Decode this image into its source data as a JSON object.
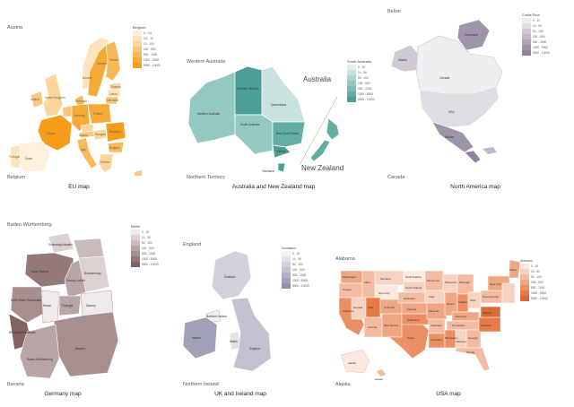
{
  "panels": {
    "eu": {
      "corner_top": "Austria",
      "corner_bottom": "Belgium",
      "caption": "EU map",
      "legend_title": "Belgium",
      "legend_items": [
        "0 - 0.5",
        "0.5 - 10",
        "10 - 100",
        "100 - 500",
        "500 - 1000",
        "1000 - 5000",
        "5000 - 10000"
      ],
      "legend_colors": [
        "#fdf1de",
        "#fce3bd",
        "#fbd59c",
        "#f9c77b",
        "#f8b95a",
        "#f6ab39",
        "#f59d18"
      ],
      "region_labels": [
        "Sweden",
        "Finland",
        "Norway",
        "Estonia",
        "Latvia",
        "Lithuania",
        "Denmark",
        "Poland",
        "Germany",
        "France",
        "Spain",
        "Italy",
        "Romania",
        "Bulgaria",
        "Ireland",
        "United Kingdom",
        "Portugal",
        "Greece",
        "Hungary",
        "Austria"
      ]
    },
    "aus": {
      "corner_top": "Western Australia",
      "corner_bottom": "Northern Territory",
      "caption": "Australia and New Zealand map",
      "legend_title": "South Australia",
      "legend_items": [
        "0 - 10",
        "10 - 50",
        "50 - 100",
        "100 - 500",
        "500 - 1000",
        "1000 - 5000",
        "5000 - 10000"
      ],
      "legend_colors": [
        "#e1efee",
        "#c8e2df",
        "#afd5d0",
        "#96c8c2",
        "#7dbab3",
        "#64ada5",
        "#4b9f96"
      ],
      "big_label_1": "Australia",
      "big_label_2": "New Zealand",
      "region_labels": [
        "Western Australia",
        "Northern Territory",
        "Queensland",
        "South Australia",
        "New South Wales",
        "Victoria",
        "Tasmania"
      ]
    },
    "na": {
      "corner_top": "Belize",
      "corner_bottom": "Canada",
      "caption": "North America map",
      "legend_title": "Costa Rica",
      "legend_items": [
        "0 - 10",
        "10 - 50",
        "50 - 100",
        "100 - 500",
        "500 - 1000",
        "1000 - 5000",
        "5000 - 10000"
      ],
      "legend_colors": [
        "#f0eef1",
        "#e0dce3",
        "#d0cad5",
        "#c0b8c7",
        "#b0a6b9",
        "#a094ab",
        "#90829d"
      ],
      "region_labels": [
        "Canada",
        "USA",
        "Mexico",
        "Alaska",
        "Greenland"
      ]
    },
    "de": {
      "corner_top": "Baden-Württemberg",
      "corner_bottom": "Bavaria",
      "caption": "Germany map",
      "legend_title": "Berlin",
      "legend_items": [
        "0 - 10",
        "10 - 50",
        "50 - 100",
        "100 - 500",
        "500 - 1000",
        "1000 - 5000",
        "5000 - 10000"
      ],
      "legend_colors": [
        "#efe9e9",
        "#ddd2d2",
        "#cbbcbc",
        "#b9a5a5",
        "#a78f8f",
        "#957878",
        "#836262"
      ],
      "region_labels": [
        "Schleswig-Holstein",
        "Lower Saxony",
        "Brandenburg",
        "Saxony-Anhalt",
        "North Rhine-Westphalia",
        "Hesse",
        "Thuringia",
        "Saxony",
        "Rhineland-Palatinate",
        "Bavaria",
        "Baden-Württemberg"
      ]
    },
    "uk": {
      "corner_top": "England",
      "corner_bottom": "Northern Ireland",
      "caption": "UK and Ireland map",
      "legend_title": "Scotland",
      "legend_items": [
        "0 - 10",
        "10 - 50",
        "50 - 100",
        "100 - 500",
        "500 - 1000",
        "1000 - 5000",
        "5000 - 10000"
      ],
      "legend_colors": [
        "#f1f1f4",
        "#e1e1e8",
        "#d1d1dc",
        "#c1c1d0",
        "#b1b1c4",
        "#a1a1b8",
        "#9191ac"
      ],
      "region_labels": [
        "Scotland",
        "Northern Ireland",
        "Ireland",
        "Wales",
        "England"
      ]
    },
    "usa": {
      "corner_top": "Alabama",
      "corner_bottom": "Alaska",
      "caption": "USA map",
      "legend_title": "Arizona",
      "legend_items": [
        "0 - 10",
        "10 - 50",
        "50 - 100",
        "100 - 500",
        "500 - 1000",
        "1000 - 5000",
        "5000 - 10000"
      ],
      "legend_colors": [
        "#fbe8e0",
        "#f7d2c1",
        "#f3bca2",
        "#efa683",
        "#eb9064",
        "#e77a45",
        "#d96a3a"
      ],
      "region_labels": [
        "Washington",
        "Oregon",
        "California",
        "Nevada",
        "Idaho",
        "Montana",
        "Wyoming",
        "Utah",
        "Colorado",
        "Arizona",
        "New Mexico",
        "Texas",
        "North Dakota",
        "South Dakota",
        "Nebraska",
        "Kansas",
        "Oklahoma",
        "Minnesota",
        "Iowa",
        "Missouri",
        "Arkansas",
        "Louisiana",
        "Wisconsin",
        "Illinois",
        "Michigan",
        "Indiana",
        "Ohio",
        "Kentucky",
        "Tennessee",
        "Mississippi",
        "Alabama",
        "Georgia",
        "Florida",
        "Carolina",
        "Virginia",
        "Pennsylvania",
        "New York",
        "Maine",
        "Alaska",
        "Hawaii"
      ]
    }
  }
}
